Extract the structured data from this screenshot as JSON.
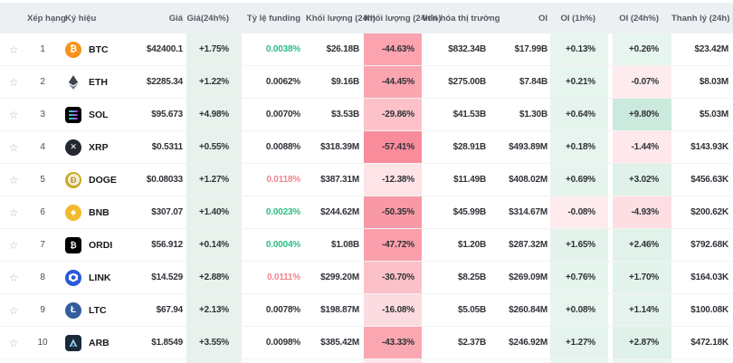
{
  "colors": {
    "header_bg": "#edf0f3",
    "green_text": "#2ebd85",
    "red_text": "#f4838f",
    "dark_text": "#2f3237",
    "price_col_bg": "#e8f1ec",
    "red_tint_base": "#f6465d",
    "green_tint_base": "#22a06a"
  },
  "header": {
    "columns": [
      "",
      "Xếp hạng",
      "Ký hiệu",
      "Giá",
      "Giá(24h%)",
      "Tỷ lệ funding",
      "Khối lượng (24h)",
      "Khối lượng (24h%)",
      "Vốn hóa thị trường",
      "OI",
      "OI (1h%)",
      "OI (24h%)",
      "Thanh lý (24h)"
    ]
  },
  "star_icon": "☆",
  "rows": [
    {
      "rank": "1",
      "symbol": "BTC",
      "icon": "btc-icon",
      "price": "$42400.1",
      "price_24h": "+1.75%",
      "funding": "0.0038%",
      "funding_color": "green",
      "volume_24h": "$26.18B",
      "volume_24h_pct": "-44.63%",
      "market_cap": "$832.34B",
      "oi": "$17.99B",
      "oi_1h": "+0.13%",
      "oi_24h": "+0.26%",
      "liquidation_24h": "$23.42M"
    },
    {
      "rank": "2",
      "symbol": "ETH",
      "icon": "eth-icon",
      "price": "$2285.34",
      "price_24h": "+1.22%",
      "funding": "0.0062%",
      "funding_color": "dark",
      "volume_24h": "$9.16B",
      "volume_24h_pct": "-44.45%",
      "market_cap": "$275.00B",
      "oi": "$7.84B",
      "oi_1h": "+0.21%",
      "oi_24h": "-0.07%",
      "liquidation_24h": "$8.03M"
    },
    {
      "rank": "3",
      "symbol": "SOL",
      "icon": "sol-icon",
      "price": "$95.673",
      "price_24h": "+4.98%",
      "funding": "0.0070%",
      "funding_color": "dark",
      "volume_24h": "$3.53B",
      "volume_24h_pct": "-29.86%",
      "market_cap": "$41.53B",
      "oi": "$1.30B",
      "oi_1h": "+0.64%",
      "oi_24h": "+9.80%",
      "liquidation_24h": "$5.03M"
    },
    {
      "rank": "4",
      "symbol": "XRP",
      "icon": "xrp-icon",
      "price": "$0.5311",
      "price_24h": "+0.55%",
      "funding": "0.0088%",
      "funding_color": "dark",
      "volume_24h": "$318.39M",
      "volume_24h_pct": "-57.41%",
      "market_cap": "$28.91B",
      "oi": "$493.89M",
      "oi_1h": "+0.18%",
      "oi_24h": "-1.44%",
      "liquidation_24h": "$143.93K"
    },
    {
      "rank": "5",
      "symbol": "DOGE",
      "icon": "doge-icon",
      "price": "$0.08033",
      "price_24h": "+1.27%",
      "funding": "0.0118%",
      "funding_color": "red",
      "volume_24h": "$387.31M",
      "volume_24h_pct": "-12.38%",
      "market_cap": "$11.49B",
      "oi": "$408.02M",
      "oi_1h": "+0.69%",
      "oi_24h": "+3.02%",
      "liquidation_24h": "$456.63K"
    },
    {
      "rank": "6",
      "symbol": "BNB",
      "icon": "bnb-icon",
      "price": "$307.07",
      "price_24h": "+1.40%",
      "funding": "0.0023%",
      "funding_color": "green",
      "volume_24h": "$244.62M",
      "volume_24h_pct": "-50.35%",
      "market_cap": "$45.99B",
      "oi": "$314.67M",
      "oi_1h": "-0.08%",
      "oi_24h": "-4.93%",
      "liquidation_24h": "$200.62K"
    },
    {
      "rank": "7",
      "symbol": "ORDI",
      "icon": "ordi-icon",
      "price": "$56.912",
      "price_24h": "+0.14%",
      "funding": "0.0004%",
      "funding_color": "green",
      "volume_24h": "$1.08B",
      "volume_24h_pct": "-47.72%",
      "market_cap": "$1.20B",
      "oi": "$287.32M",
      "oi_1h": "+1.65%",
      "oi_24h": "+2.46%",
      "liquidation_24h": "$792.68K"
    },
    {
      "rank": "8",
      "symbol": "LINK",
      "icon": "link-icon",
      "price": "$14.529",
      "price_24h": "+2.88%",
      "funding": "0.0111%",
      "funding_color": "red",
      "volume_24h": "$299.20M",
      "volume_24h_pct": "-30.70%",
      "market_cap": "$8.25B",
      "oi": "$269.09M",
      "oi_1h": "+0.76%",
      "oi_24h": "+1.70%",
      "liquidation_24h": "$164.03K"
    },
    {
      "rank": "9",
      "symbol": "LTC",
      "icon": "ltc-icon",
      "price": "$67.94",
      "price_24h": "+2.13%",
      "funding": "0.0078%",
      "funding_color": "dark",
      "volume_24h": "$198.87M",
      "volume_24h_pct": "-16.08%",
      "market_cap": "$5.05B",
      "oi": "$260.84M",
      "oi_1h": "+0.08%",
      "oi_24h": "+1.14%",
      "liquidation_24h": "$100.08K"
    },
    {
      "rank": "10",
      "symbol": "ARB",
      "icon": "arb-icon",
      "price": "$1.8549",
      "price_24h": "+3.55%",
      "funding": "0.0098%",
      "funding_color": "dark",
      "volume_24h": "$385.42M",
      "volume_24h_pct": "-43.33%",
      "market_cap": "$2.37B",
      "oi": "$246.92M",
      "oi_1h": "+1.27%",
      "oi_24h": "+2.87%",
      "liquidation_24h": "$472.18K"
    }
  ]
}
